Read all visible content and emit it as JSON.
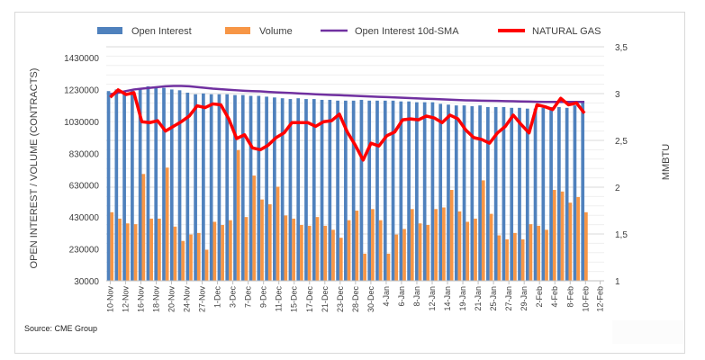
{
  "source": "Source: CME Group",
  "chart_data": {
    "type": "bar",
    "title": "",
    "legend": [
      "Open Interest",
      "Volume",
      "Open Interest 10d-SMA",
      "NATURAL GAS"
    ],
    "legend_position": "top",
    "colors": {
      "open_interest": "#4f81bd",
      "volume": "#f79646",
      "sma": "#7030a0",
      "gas": "#ff0000"
    },
    "ylabel": "OPEN INTEREST / VOLUME (CONTRACTS)",
    "y2label": "MMBTU",
    "ylim": [
      30000,
      1430000
    ],
    "yticks": [
      "1430000",
      "1230000",
      "1030000",
      "830000",
      "630000",
      "430000",
      "230000",
      "30000"
    ],
    "y2lim": [
      1,
      3.5
    ],
    "y2ticks": [
      "3,5",
      "3",
      "2,5",
      "2",
      "1,5",
      "1"
    ],
    "grid": true,
    "xtick_labels": [
      "10-Nov",
      "12-Nov",
      "16-Nov",
      "18-Nov",
      "20-Nov",
      "24-Nov",
      "27-Nov",
      "1-Dec",
      "3-Dec",
      "7-Dec",
      "9-Dec",
      "11-Dec",
      "15-Dec",
      "17-Dec",
      "21-Dec",
      "23-Dec",
      "28-Dec",
      "30-Dec",
      "4-Jan",
      "6-Jan",
      "8-Jan",
      "12-Jan",
      "14-Jan",
      "19-Jan",
      "21-Jan",
      "25-Jan",
      "27-Jan",
      "29-Jan",
      "2-Feb",
      "4-Feb",
      "8-Feb",
      "10-Feb",
      "12-Feb"
    ],
    "categories_count": 63,
    "series": [
      {
        "name": "Open Interest",
        "type": "bar",
        "values": [
          1220000,
          1230000,
          1220000,
          1225000,
          1230000,
          1250000,
          1245000,
          1240000,
          1230000,
          1225000,
          1210000,
          1200000,
          1205000,
          1200000,
          1200000,
          1200000,
          1195000,
          1195000,
          1190000,
          1190000,
          1185000,
          1180000,
          1175000,
          1170000,
          1175000,
          1170000,
          1170000,
          1165000,
          1165000,
          1160000,
          1160000,
          1160000,
          1165000,
          1160000,
          1160000,
          1160000,
          1160000,
          1155000,
          1155000,
          1150000,
          1150000,
          1150000,
          1140000,
          1135000,
          1130000,
          1130000,
          1125000,
          1130000,
          1120000,
          1120000,
          1120000,
          1115000,
          1115000,
          1110000,
          1110000,
          1115000,
          1120000,
          1120000,
          1115000,
          1130000,
          1150000,
          null,
          null
        ]
      },
      {
        "name": "Volume",
        "type": "bar",
        "values": [
          460000,
          420000,
          390000,
          385000,
          700000,
          420000,
          420000,
          740000,
          370000,
          280000,
          320000,
          330000,
          225000,
          400000,
          380000,
          410000,
          850000,
          430000,
          690000,
          540000,
          510000,
          620000,
          440000,
          420000,
          380000,
          375000,
          430000,
          375000,
          350000,
          300000,
          410000,
          470000,
          200000,
          480000,
          410000,
          200000,
          320000,
          355000,
          480000,
          390000,
          380000,
          480000,
          490000,
          600000,
          465000,
          400000,
          420000,
          660000,
          450000,
          315000,
          290000,
          330000,
          290000,
          385000,
          375000,
          350000,
          600000,
          590000,
          520000,
          555000,
          460000,
          null,
          null
        ]
      },
      {
        "name": "Open Interest 10d-SMA",
        "type": "line",
        "values": [
          1200000,
          1210000,
          1220000,
          1230000,
          1235000,
          1240000,
          1245000,
          1250000,
          1252000,
          1252000,
          1250000,
          1245000,
          1240000,
          1235000,
          1232000,
          1228000,
          1225000,
          1222000,
          1220000,
          1218000,
          1215000,
          1212000,
          1210000,
          1208000,
          1205000,
          1203000,
          1200000,
          1198000,
          1196000,
          1194000,
          1192000,
          1190000,
          1188000,
          1186000,
          1184000,
          1182000,
          1180000,
          1178000,
          1176000,
          1174000,
          1172000,
          1170000,
          1168000,
          1166000,
          1164000,
          1162000,
          1161000,
          1160000,
          1159000,
          1158000,
          1157000,
          1156000,
          1155000,
          1154000,
          1153000,
          1152000,
          1152000,
          1152000,
          1152000,
          1152000,
          1152000,
          null,
          null
        ]
      },
      {
        "name": "NATURAL GAS",
        "type": "line",
        "axis": "right",
        "values": [
          2.96,
          3.04,
          2.99,
          3.01,
          2.7,
          2.69,
          2.71,
          2.6,
          2.65,
          2.7,
          2.76,
          2.87,
          2.85,
          2.89,
          2.88,
          2.73,
          2.52,
          2.56,
          2.42,
          2.4,
          2.45,
          2.53,
          2.58,
          2.69,
          2.69,
          2.69,
          2.65,
          2.7,
          2.71,
          2.78,
          2.59,
          2.45,
          2.29,
          2.47,
          2.44,
          2.55,
          2.59,
          2.72,
          2.73,
          2.72,
          2.76,
          2.74,
          2.69,
          2.77,
          2.73,
          2.61,
          2.53,
          2.51,
          2.47,
          2.58,
          2.65,
          2.77,
          2.67,
          2.58,
          2.88,
          2.86,
          2.83,
          2.95,
          2.88,
          2.9,
          2.79,
          null,
          null
        ]
      }
    ]
  }
}
